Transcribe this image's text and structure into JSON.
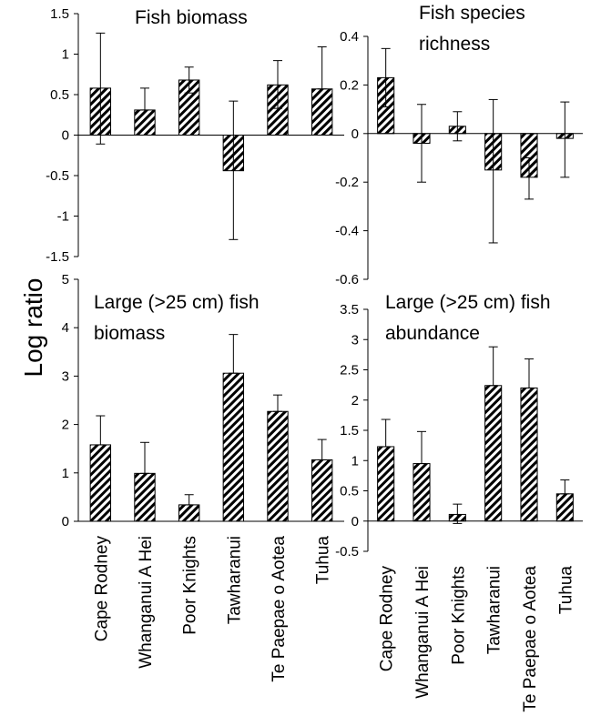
{
  "ylabel": "Log ratio",
  "categories": [
    "Cape Rodney",
    "Whanganui A Hei",
    "Poor Knights",
    "Tawharanui",
    "Te Paepae o Aotea",
    "Tuhua"
  ],
  "chart_data": [
    {
      "type": "bar",
      "title_lines": [
        "Fish biomass"
      ],
      "categories": [
        "Cape Rodney",
        "Whanganui A Hei",
        "Poor Knights",
        "Tawharanui",
        "Te Paepae o Aotea",
        "Tuhua"
      ],
      "values": [
        0.58,
        0.31,
        0.68,
        -0.44,
        0.62,
        0.57
      ],
      "error_upper": [
        1.26,
        0.58,
        0.84,
        0.42,
        0.92,
        1.09
      ],
      "error_lower": [
        -0.11,
        0.31,
        0.52,
        -1.29,
        0.33,
        0.57
      ],
      "ylim": [
        -1.5,
        1.5
      ],
      "yticks": [
        -1.5,
        -1,
        -0.5,
        0,
        0.5,
        1,
        1.5
      ],
      "ytick_labels": [
        "-1.5",
        "-1",
        "-0.5",
        "0",
        "0.5",
        "1",
        "1.5"
      ],
      "grid": false,
      "pattern": "diagonal-hatch"
    },
    {
      "type": "bar",
      "title_lines": [
        "Fish species",
        "richness"
      ],
      "categories": [
        "Cape Rodney",
        "Whanganui A Hei",
        "Poor Knights",
        "Tawharanui",
        "Te Paepae o Aotea",
        "Tuhua"
      ],
      "values": [
        0.23,
        -0.04,
        0.03,
        -0.15,
        -0.18,
        -0.02
      ],
      "error_upper": [
        0.35,
        0.12,
        0.09,
        0.14,
        -0.1,
        0.13
      ],
      "error_lower": [
        0.11,
        -0.2,
        -0.03,
        -0.45,
        -0.27,
        -0.18
      ],
      "ylim": [
        -0.6,
        0.4
      ],
      "yticks": [
        -0.6,
        -0.4,
        -0.2,
        0,
        0.2,
        0.4
      ],
      "ytick_labels": [
        "-0.6",
        "-0.4",
        "-0.2",
        "0",
        "0.2",
        "0.4"
      ],
      "grid": false,
      "pattern": "diagonal-hatch"
    },
    {
      "type": "bar",
      "title_lines": [
        "Large (>25 cm) fish",
        "biomass"
      ],
      "categories": [
        "Cape Rodney",
        "Whanganui A Hei",
        "Poor Knights",
        "Tawharanui",
        "Te Paepae o Aotea",
        "Tuhua"
      ],
      "values": [
        1.58,
        0.99,
        0.34,
        3.06,
        2.27,
        1.27
      ],
      "error_upper": [
        2.18,
        1.63,
        0.55,
        3.86,
        2.61,
        1.69
      ],
      "error_lower": [
        1.58,
        0.99,
        0.34,
        3.06,
        2.27,
        1.27
      ],
      "ylim": [
        0,
        5
      ],
      "yticks": [
        0,
        1,
        2,
        3,
        4,
        5
      ],
      "ytick_labels": [
        "0",
        "1",
        "2",
        "3",
        "4",
        "5"
      ],
      "grid": false,
      "pattern": "diagonal-hatch"
    },
    {
      "type": "bar",
      "title_lines": [
        "Large (>25 cm) fish",
        "abundance"
      ],
      "categories": [
        "Cape Rodney",
        "Whanganui A Hei",
        "Poor Knights",
        "Tawharanui",
        "Te Paepae o Aotea",
        "Tuhua"
      ],
      "values": [
        1.23,
        0.95,
        0.11,
        2.24,
        2.2,
        0.45
      ],
      "error_upper": [
        1.68,
        1.48,
        0.28,
        2.88,
        2.68,
        0.68
      ],
      "error_lower": [
        1.23,
        0.95,
        -0.04,
        2.24,
        2.2,
        0.45
      ],
      "ylim": [
        -0.5,
        3.5
      ],
      "yticks": [
        -0.5,
        0,
        0.5,
        1,
        1.5,
        2,
        2.5,
        3,
        3.5
      ],
      "ytick_labels": [
        "-0.5",
        "0",
        "0.5",
        "1",
        "1.5",
        "2",
        "2.5",
        "3",
        "3.5"
      ],
      "grid": false,
      "pattern": "diagonal-hatch"
    }
  ]
}
